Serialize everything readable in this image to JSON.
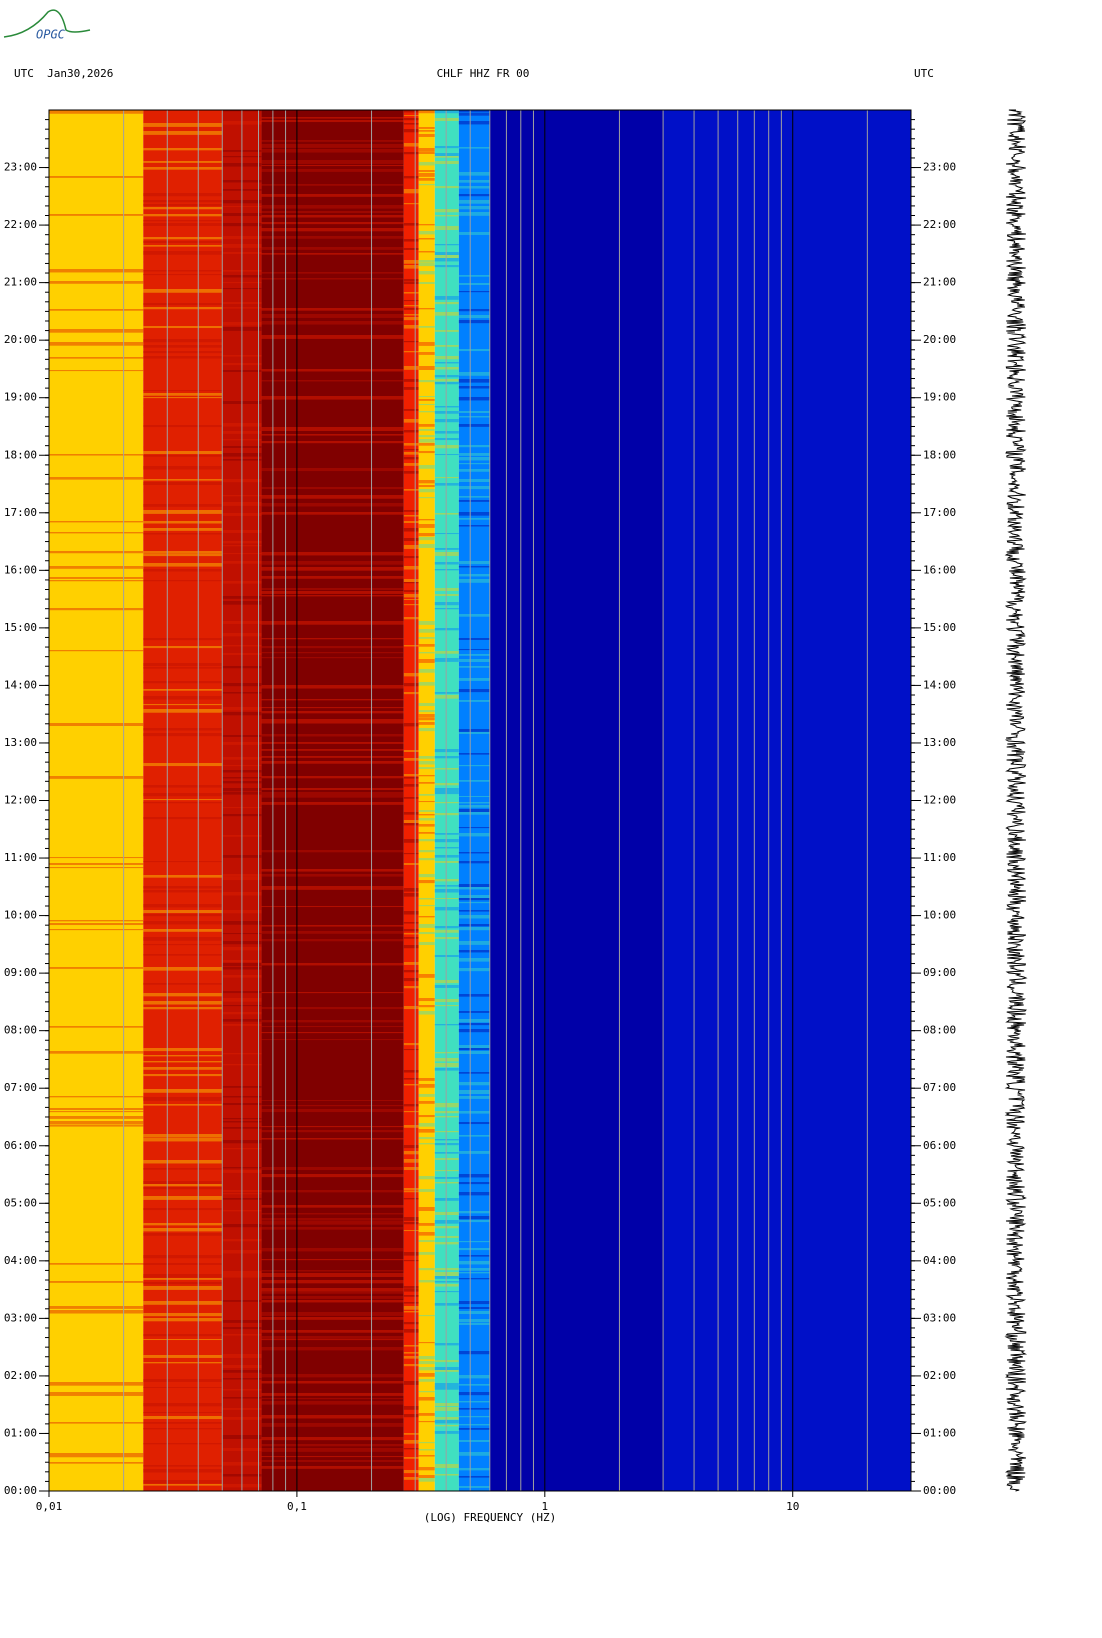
{
  "logo": "OPGC",
  "chart_data": {
    "type": "spectrogram",
    "title": "CHLF HHZ FR 00",
    "left_header": "UTC  Jan30,2026",
    "right_header": "UTC",
    "xlabel": "(LOG) FREQUENCY (HZ)",
    "xscale": "log",
    "xlim": [
      0.01,
      30
    ],
    "xticks": [
      {
        "value": 0.01,
        "label": "0,01"
      },
      {
        "value": 0.1,
        "label": "0,1"
      },
      1,
      10
    ],
    "xminorticks": [
      0.02,
      0.03,
      0.04,
      0.05,
      0.06,
      0.07,
      0.08,
      0.09,
      0.2,
      0.3,
      0.4,
      0.5,
      0.6,
      0.7,
      0.8,
      0.9,
      2,
      3,
      4,
      5,
      6,
      7,
      8,
      9,
      20
    ],
    "ylim": [
      0,
      24
    ],
    "yticks": [
      {
        "value": 0,
        "label": "00:00"
      },
      {
        "value": 1,
        "label": "01:00"
      },
      {
        "value": 2,
        "label": "02:00"
      },
      {
        "value": 3,
        "label": "03:00"
      },
      {
        "value": 4,
        "label": "04:00"
      },
      {
        "value": 5,
        "label": "05:00"
      },
      {
        "value": 6,
        "label": "06:00"
      },
      {
        "value": 7,
        "label": "07:00"
      },
      {
        "value": 8,
        "label": "08:00"
      },
      {
        "value": 9,
        "label": "09:00"
      },
      {
        "value": 10,
        "label": "10:00"
      },
      {
        "value": 11,
        "label": "11:00"
      },
      {
        "value": 12,
        "label": "12:00"
      },
      {
        "value": 13,
        "label": "13:00"
      },
      {
        "value": 14,
        "label": "14:00"
      },
      {
        "value": 15,
        "label": "15:00"
      },
      {
        "value": 16,
        "label": "16:00"
      },
      {
        "value": 17,
        "label": "17:00"
      },
      {
        "value": 18,
        "label": "18:00"
      },
      {
        "value": 19,
        "label": "19:00"
      },
      {
        "value": 20,
        "label": "20:00"
      },
      {
        "value": 21,
        "label": "21:00"
      },
      {
        "value": 22,
        "label": "22:00"
      },
      {
        "value": 23,
        "label": "23:00"
      }
    ],
    "colorscale": [
      {
        "from": 0.01,
        "to": 0.024,
        "color": "#ffd000"
      },
      {
        "from": 0.024,
        "to": 0.05,
        "color": "#e02000"
      },
      {
        "from": 0.05,
        "to": 0.072,
        "color": "#c01000"
      },
      {
        "from": 0.072,
        "to": 0.27,
        "color": "#800000"
      },
      {
        "from": 0.27,
        "to": 0.31,
        "color": "#f02000"
      },
      {
        "from": 0.31,
        "to": 0.36,
        "color": "#ffd000"
      },
      {
        "from": 0.36,
        "to": 0.45,
        "color": "#40e0c0"
      },
      {
        "from": 0.45,
        "to": 0.6,
        "color": "#0080ff"
      },
      {
        "from": 0.6,
        "to": 3,
        "color": "#0000a8"
      },
      {
        "from": 3,
        "to": 30,
        "color": "#0010c8"
      }
    ]
  }
}
